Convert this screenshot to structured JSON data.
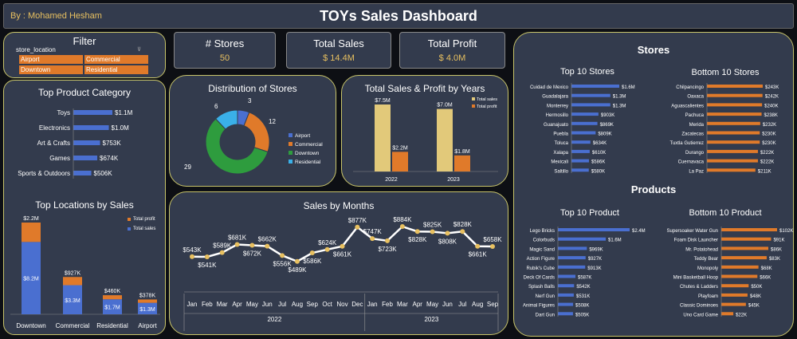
{
  "header": {
    "author": "By : Mohamed Hesham",
    "title": "TOYs Sales Dashboard"
  },
  "colors": {
    "panel": "#333b4d",
    "border": "#c8c46a",
    "orange": "#e07a2a",
    "blue": "#4a6fd0",
    "gold": "#e8c060",
    "green": "#2e9c3e",
    "cyan": "#3ab0e8",
    "khaki": "#e2c97a"
  },
  "kpis": [
    {
      "label": "# Stores",
      "value": "50"
    },
    {
      "label": "Total Sales",
      "value": "$ 14.4M"
    },
    {
      "label": "Total Profit",
      "value": "$ 4.0M"
    }
  ],
  "filter": {
    "title": "Filter",
    "field": "store_location",
    "clear_icon": "filter-clear-icon",
    "options": [
      "Airport",
      "Commercial",
      "Downtown",
      "Residential"
    ]
  },
  "charts": {
    "top_category": {
      "title": "Top Product Category",
      "chart_data": {
        "type": "bar",
        "orientation": "horizontal",
        "categories": [
          "Toys",
          "Electronics",
          "Art & Crafts",
          "Games",
          "Sports & Outdoors"
        ],
        "values": [
          1100000,
          1000000,
          753000,
          674000,
          506000
        ],
        "labels": [
          "$1.1M",
          "$1.0M",
          "$753K",
          "$674K",
          "$506K"
        ]
      }
    },
    "top_locations": {
      "title": "Top Locations by Sales",
      "chart_data": {
        "type": "bar",
        "stacked": true,
        "categories": [
          "Downtown",
          "Commercial",
          "Residential",
          "Airport"
        ],
        "series": [
          {
            "name": "Total sales",
            "values": [
              8200000,
              3300000,
              1700000,
              1300000
            ],
            "labels": [
              "$8.2M",
              "$3.3M",
              "$1.7M",
              "$1.3M"
            ]
          },
          {
            "name": "Total profit",
            "values": [
              2200000,
              927000,
              460000,
              378000
            ],
            "labels": [
              "$2.2M",
              "$927K",
              "$460K",
              "$378K"
            ]
          }
        ],
        "legend_position": "right"
      }
    },
    "distribution": {
      "title": "Distribution of Stores",
      "chart_data": {
        "type": "pie",
        "donut": true,
        "categories": [
          "Airport",
          "Commercial",
          "Downtown",
          "Residential"
        ],
        "values": [
          3,
          12,
          29,
          6
        ],
        "legend_position": "right"
      }
    },
    "sales_profit_years": {
      "title": "Total Sales & Profit by Years",
      "chart_data": {
        "type": "bar",
        "categories": [
          "2022",
          "2023"
        ],
        "series": [
          {
            "name": "Total sales",
            "values": [
              7500000,
              7000000
            ],
            "labels": [
              "$7.5M",
              "$7.0M"
            ]
          },
          {
            "name": "Total profit",
            "values": [
              2200000,
              1800000
            ],
            "labels": [
              "$2.2M",
              "$1.8M"
            ]
          }
        ],
        "legend_position": "top-right"
      }
    },
    "sales_months": {
      "title": "Sales by Months",
      "chart_data": {
        "type": "line",
        "x": [
          "Jan",
          "Feb",
          "Mar",
          "Apr",
          "May",
          "Jun",
          "Jul",
          "Aug",
          "Sep",
          "Oct",
          "Nov",
          "Dec",
          "Jan",
          "Feb",
          "Mar",
          "Apr",
          "May",
          "Jun",
          "Jul",
          "Aug",
          "Sep"
        ],
        "year_groups": [
          {
            "label": "2022",
            "count": 12
          },
          {
            "label": "2023",
            "count": 9
          }
        ],
        "values": [
          543000,
          541000,
          589000,
          681000,
          672000,
          662000,
          556000,
          489000,
          586000,
          624000,
          661000,
          877000,
          747000,
          723000,
          884000,
          828000,
          825000,
          808000,
          828000,
          661000,
          658000
        ],
        "labels": [
          "$543K",
          "$541K",
          "$589K",
          "$681K",
          "$672K",
          "$662K",
          "$556K",
          "$489K",
          "$586K",
          "$624K",
          "$661K",
          "$877K",
          "$747K",
          "$723K",
          "$884K",
          "$828K",
          "$825K",
          "$808K",
          "$828K",
          "$661K",
          "$658K"
        ]
      }
    },
    "stores_panel": {
      "title": "Stores",
      "top_title": "Top 10 Stores",
      "bottom_title": "Bottom 10 Stores",
      "top": {
        "chart_data": {
          "type": "bar",
          "orientation": "horizontal",
          "categories": [
            "Cuidad de Mexico",
            "Guadalajara",
            "Monterrey",
            "Hermosillo",
            "Guanajuato",
            "Puebla",
            "Toluca",
            "Xalapa",
            "Mexicali",
            "Saltillo"
          ],
          "values": [
            1600000,
            1300000,
            1300000,
            903000,
            869000,
            809000,
            634000,
            610000,
            586000,
            580000
          ],
          "labels": [
            "$1.6M",
            "$1.3M",
            "$1.3M",
            "$903K",
            "$869K",
            "$809K",
            "$634K",
            "$610K",
            "$586K",
            "$580K"
          ]
        }
      },
      "bottom": {
        "chart_data": {
          "type": "bar",
          "orientation": "horizontal",
          "categories": [
            "Chilpancingo",
            "Oaxaca",
            "Aguascalientes",
            "Pachuca",
            "Merida",
            "Zacatecas",
            "Tuxtla Gutierrez",
            "Durango",
            "Cuernavaca",
            "La Paz"
          ],
          "values": [
            243000,
            242000,
            240000,
            238000,
            232000,
            230000,
            230000,
            222000,
            222000,
            211000
          ],
          "labels": [
            "$243K",
            "$242K",
            "$240K",
            "$238K",
            "$232K",
            "$230K",
            "$230K",
            "$222K",
            "$222K",
            "$211K"
          ]
        }
      }
    },
    "products_panel": {
      "title": "Products",
      "top_title": "Top 10 Product",
      "bottom_title": "Bottom 10 Product",
      "top": {
        "chart_data": {
          "type": "bar",
          "orientation": "horizontal",
          "categories": [
            "Lego Bricks",
            "Colorbuds",
            "Magic Sand",
            "Action Figure",
            "Rubik's Cube",
            "Deck Of Cards",
            "Splash Balls",
            "Nerf Gun",
            "Animal Figures",
            "Dart Gun"
          ],
          "values": [
            2400000,
            1600000,
            969000,
            927000,
            913000,
            587000,
            542000,
            531000,
            508000,
            505000
          ],
          "labels": [
            "$2.4M",
            "$1.6M",
            "$969K",
            "$927K",
            "$913K",
            "$587K",
            "$542K",
            "$531K",
            "$508K",
            "$505K"
          ]
        }
      },
      "bottom": {
        "chart_data": {
          "type": "bar",
          "orientation": "horizontal",
          "categories": [
            "Supersoaker Water Gun",
            "Foam Disk Launcher",
            "Mr. Potatohead",
            "Teddy Bear",
            "Monopoly",
            "Mini Basketball Hoop",
            "Chutes & Ladders",
            "Playfoam",
            "Classic Dominoes",
            "Uno Card Game"
          ],
          "values": [
            102000,
            91000,
            86000,
            83000,
            68000,
            66000,
            50000,
            48000,
            45000,
            22000
          ],
          "labels": [
            "$102K",
            "$91K",
            "$86K",
            "$83K",
            "$68K",
            "$66K",
            "$50K",
            "$48K",
            "$45K",
            "$22K"
          ]
        }
      }
    }
  }
}
